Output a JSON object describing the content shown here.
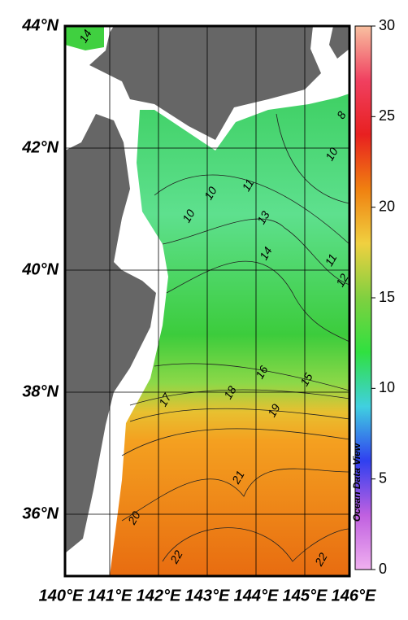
{
  "map": {
    "lonticks": [
      {
        "value": 140,
        "label": "140°E"
      },
      {
        "value": 141,
        "label": "141°E"
      },
      {
        "value": 142,
        "label": "142°E"
      },
      {
        "value": 143,
        "label": "143°E"
      },
      {
        "value": 144,
        "label": "144°E"
      },
      {
        "value": 145,
        "label": "145°E"
      },
      {
        "value": 146,
        "label": "146°E"
      }
    ],
    "latticks": [
      {
        "value": 44,
        "label": "44°N"
      },
      {
        "value": 42,
        "label": "42°N"
      },
      {
        "value": 40,
        "label": "40°N"
      },
      {
        "value": 38,
        "label": "38°N"
      },
      {
        "value": 36,
        "label": "36°N"
      }
    ],
    "contour_labels": [
      "14",
      "8",
      "10",
      "10",
      "11",
      "10",
      "13",
      "11",
      "14",
      "12",
      "16",
      "15",
      "17",
      "18",
      "19",
      "21",
      "20",
      "22",
      "22"
    ],
    "colorbar": {
      "lim": [
        0,
        30
      ],
      "ticks": [
        0,
        5,
        10,
        15,
        20,
        25,
        30
      ]
    },
    "watermark": "Ocean Data View"
  }
}
